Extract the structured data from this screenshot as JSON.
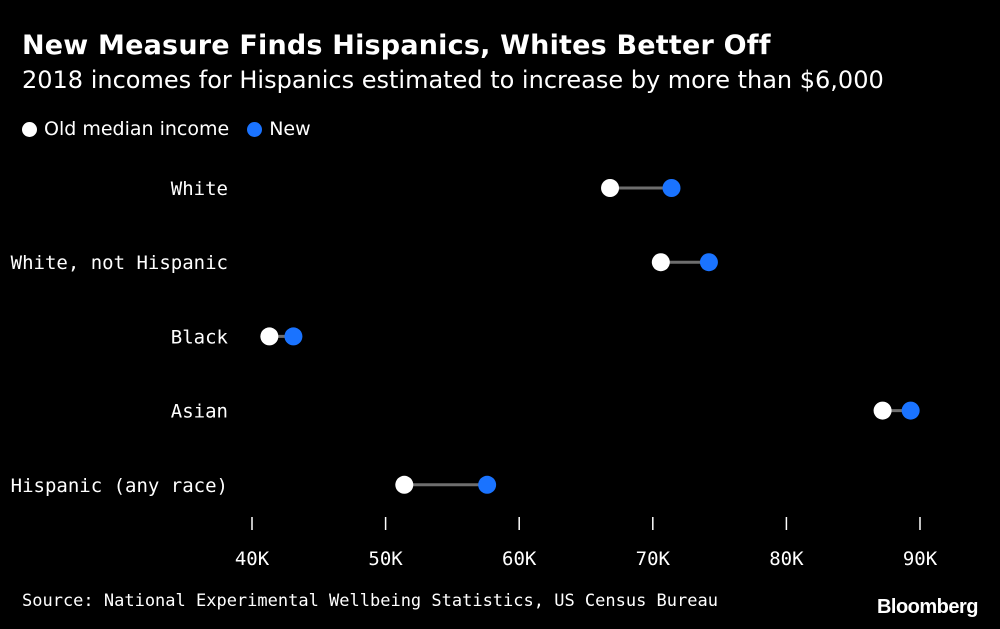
{
  "header": {
    "title": "New Measure Finds Hispanics, Whites Better Off",
    "subtitle": "2018 incomes for Hispanics estimated to increase by more than $6,000"
  },
  "legend": {
    "old_label": "Old median income",
    "new_label": "New"
  },
  "colors": {
    "background": "#000000",
    "old": "#ffffff",
    "new": "#1a73ff",
    "connector": "#6e6e6e",
    "text": "#ffffff"
  },
  "chart_data": {
    "type": "dumbbell",
    "title": "New Measure Finds Hispanics, Whites Better Off",
    "subtitle": "2018 incomes for Hispanics estimated to increase by more than $6,000",
    "categories": [
      "White",
      "White, not Hispanic",
      "Black",
      "Asian",
      "Hispanic (any race)"
    ],
    "series": [
      {
        "name": "Old median income",
        "values": [
          66800,
          70600,
          41300,
          87200,
          51400
        ]
      },
      {
        "name": "New",
        "values": [
          71400,
          74200,
          43100,
          89300,
          57600
        ]
      }
    ],
    "x_ticks": [
      40000,
      50000,
      60000,
      70000,
      80000,
      90000
    ],
    "x_tick_labels": [
      "40K",
      "50K",
      "60K",
      "70K",
      "80K",
      "90K"
    ],
    "xlim": [
      40000,
      90000
    ],
    "grid": false,
    "legend_position": "top-left"
  },
  "footer": {
    "source": "Source: National Experimental Wellbeing Statistics, US Census Bureau",
    "brand": "Bloomberg"
  }
}
